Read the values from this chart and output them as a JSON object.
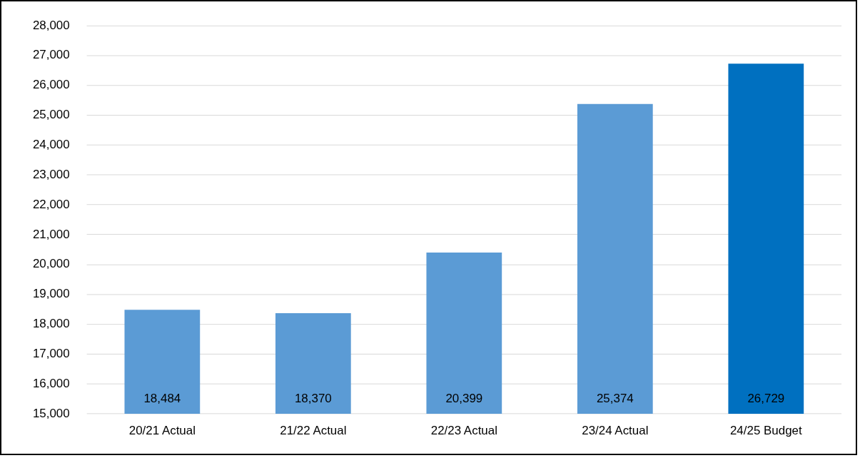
{
  "chart_data": {
    "type": "bar",
    "categories": [
      "20/21 Actual",
      "21/22 Actual",
      "22/23 Actual",
      "23/24 Actual",
      "24/25 Budget"
    ],
    "values": [
      18484,
      18370,
      20399,
      25374,
      26729
    ],
    "value_labels": [
      "18,484",
      "18,370",
      "20,399",
      "25,374",
      "26,729"
    ],
    "colors": [
      "#5b9bd5",
      "#5b9bd5",
      "#5b9bd5",
      "#5b9bd5",
      "#0070c0"
    ],
    "ylim": [
      15000,
      28000
    ],
    "yticks": [
      {
        "value": 15000,
        "label": "15,000"
      },
      {
        "value": 16000,
        "label": "16,000"
      },
      {
        "value": 17000,
        "label": "17,000"
      },
      {
        "value": 18000,
        "label": "18,000"
      },
      {
        "value": 19000,
        "label": "19,000"
      },
      {
        "value": 20000,
        "label": "20,000"
      },
      {
        "value": 21000,
        "label": "21,000"
      },
      {
        "value": 22000,
        "label": "22,000"
      },
      {
        "value": 23000,
        "label": "23,000"
      },
      {
        "value": 24000,
        "label": "24,000"
      },
      {
        "value": 25000,
        "label": "25,000"
      },
      {
        "value": 26000,
        "label": "26,000"
      },
      {
        "value": 27000,
        "label": "27,000"
      },
      {
        "value": 28000,
        "label": "28,000"
      }
    ],
    "grid": "y",
    "legend": false
  }
}
